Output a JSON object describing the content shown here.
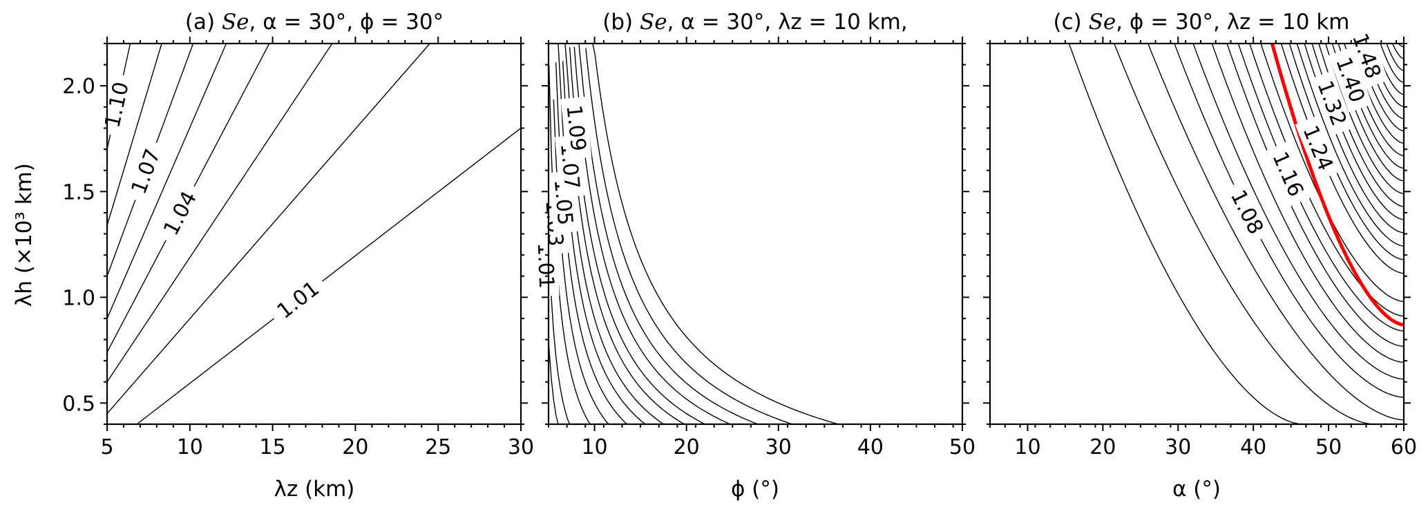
{
  "chart_data": [
    {
      "type": "contour",
      "panel": "a",
      "title_parts": {
        "prefix": "(a) ",
        "var": "Se",
        "rest": ", α = 30°, ϕ = 30°"
      },
      "xlabel": "λz (km)",
      "ylabel": "λh (×10³ km)",
      "xlim": [
        5,
        30
      ],
      "ylim": [
        0.4,
        2.2
      ],
      "xticks": [
        5,
        10,
        15,
        20,
        25,
        30
      ],
      "yticks": [
        0.5,
        1.0,
        1.5,
        2.0
      ],
      "xtick_labels": [
        "5",
        "10",
        "15",
        "20",
        "25",
        "30"
      ],
      "ytick_labels": [
        "0.5",
        "1.0",
        "1.5",
        "2.0"
      ],
      "contour_labels": [
        "1.10",
        "1.07",
        "1.04",
        "1.01"
      ],
      "contour_label_values": [
        1.1,
        1.07,
        1.04,
        1.01
      ],
      "contours": [
        {
          "p0": [
            6.8,
            0.4
          ],
          "p1": [
            30,
            1.8
          ]
        },
        {
          "p0": [
            5.0,
            0.45
          ],
          "p1": [
            24.5,
            2.2
          ]
        },
        {
          "p0": [
            5.0,
            0.6
          ],
          "p1": [
            18.6,
            2.2
          ]
        },
        {
          "p0": [
            5.0,
            0.74
          ],
          "p1": [
            14.8,
            2.2
          ]
        },
        {
          "p0": [
            5.0,
            0.9
          ],
          "p1": [
            12.2,
            2.2
          ]
        },
        {
          "p0": [
            5.0,
            1.1
          ],
          "p1": [
            10.2,
            2.2
          ]
        },
        {
          "p0": [
            5.0,
            1.34
          ],
          "p1": [
            8.3,
            2.2
          ]
        },
        {
          "p0": [
            5.0,
            1.7
          ],
          "p1": [
            6.4,
            2.2
          ]
        }
      ]
    },
    {
      "type": "contour",
      "panel": "b",
      "title_parts": {
        "prefix": "(b) ",
        "var": "Se",
        "rest": ", α = 30°, λz = 10 km,"
      },
      "xlabel": "ϕ (°)",
      "xlim": [
        5,
        50
      ],
      "ylim": [
        0.4,
        2.2
      ],
      "xticks": [
        10,
        20,
        30,
        40,
        50
      ],
      "yticks": [
        0.5,
        1.0,
        1.5,
        2.0
      ],
      "xtick_labels": [
        "10",
        "20",
        "30",
        "40",
        "50"
      ],
      "contour_labels": [
        "1.01",
        "1.03",
        "1.05",
        "1.07",
        "1.09"
      ],
      "contour_label_values": [
        1.01,
        1.03,
        1.05,
        1.07,
        1.09
      ],
      "contour_K": [
        0.8,
        1.3,
        2.2,
        3.0,
        3.8,
        4.6,
        5.4,
        6.3,
        7.2,
        8.3,
        9.5,
        11.0,
        13.0
      ],
      "contour_form": "lambda_h = K / (phi - 4)"
    },
    {
      "type": "contour",
      "panel": "c",
      "title_parts": {
        "prefix": "(c) ",
        "var": "Se",
        "rest": ", ϕ = 30°, λz = 10 km"
      },
      "xlabel": "α (°)",
      "xlim": [
        5,
        60
      ],
      "ylim": [
        0.4,
        2.2
      ],
      "xticks": [
        10,
        20,
        30,
        40,
        50,
        60
      ],
      "yticks": [
        0.5,
        1.0,
        1.5,
        2.0
      ],
      "xtick_labels": [
        "10",
        "20",
        "30",
        "40",
        "50",
        "60"
      ],
      "contour_labels": [
        "1.08",
        "1.16",
        "1.24",
        "1.32",
        "1.40",
        "1.48"
      ],
      "contour_label_values": [
        1.08,
        1.16,
        1.24,
        1.32,
        1.4,
        1.48
      ],
      "highlight_color": "#ff0000",
      "highlight_curve": {
        "x_at_top": 42.5,
        "x_at_bottom": 60,
        "y_at_bottom": 0.87
      },
      "contour_x_at_top": [
        15.5,
        21.5,
        26.0,
        29.5,
        32.0,
        34.5,
        36.5,
        38.0,
        39.5,
        41.0,
        42.5,
        43.7,
        44.8,
        45.8,
        46.8,
        47.8,
        48.7,
        49.6,
        50.5,
        51.3,
        52.1,
        52.9,
        53.7,
        54.5,
        55.3,
        56.1,
        56.9,
        57.7,
        58.5,
        59.3
      ],
      "contour_x_at_bottom": [
        46.5,
        56.0,
        60,
        60,
        60,
        60,
        60,
        60,
        60,
        60,
        60,
        60,
        60,
        60,
        60,
        60,
        60,
        60,
        60,
        60,
        60,
        60,
        60,
        60,
        60,
        60,
        60,
        60,
        60,
        60
      ],
      "highlight_index": 10
    }
  ]
}
